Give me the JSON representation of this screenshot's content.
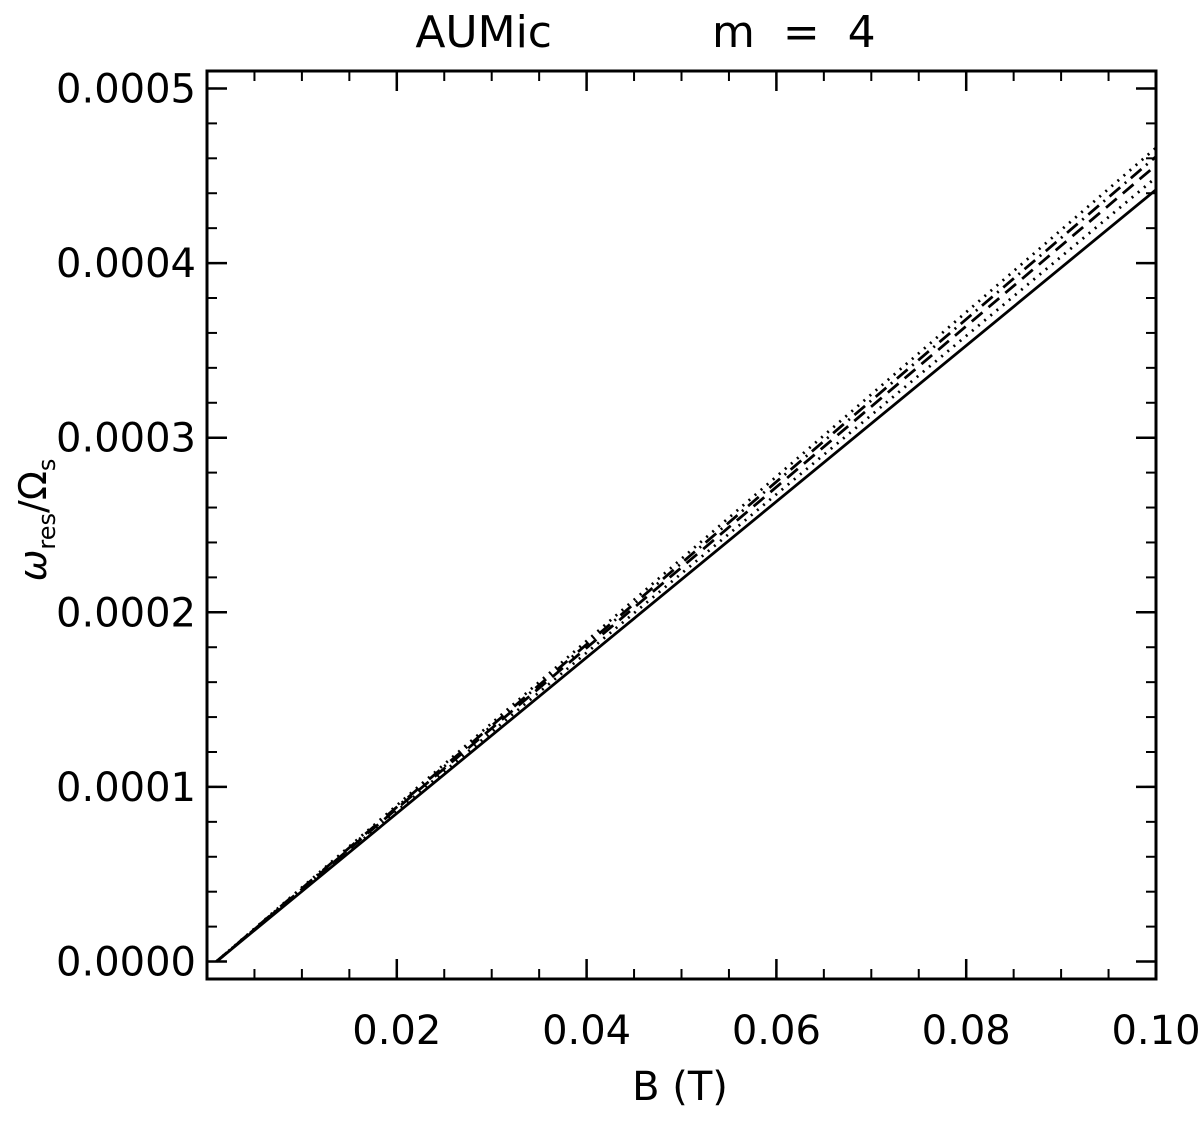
{
  "chart_data": {
    "type": "line",
    "title_left": "AUMic",
    "title_right": "m  =  4",
    "xlabel": "B (T)",
    "ylabel": {
      "omega": "ω",
      "res": "res",
      "slash": "/",
      "Omega": "Ω",
      "s": "s"
    },
    "xlim": [
      0.0,
      0.1
    ],
    "ylim": [
      -1e-05,
      0.00051
    ],
    "x_ticks": [
      0.02,
      0.04,
      0.06,
      0.08,
      0.1
    ],
    "x_tick_labels": [
      "0.02",
      "0.04",
      "0.06",
      "0.08",
      "0.10"
    ],
    "y_ticks": [
      0.0,
      0.0001,
      0.0002,
      0.0003,
      0.0004,
      0.0005
    ],
    "y_tick_labels": [
      "0.0000",
      "0.0001",
      "0.0002",
      "0.0003",
      "0.0004",
      "0.0005"
    ],
    "x_minor_step": 0.005,
    "y_minor_step": 2e-05,
    "grid": false,
    "series": [
      {
        "style": "solid",
        "x": [
          0.001,
          0.1
        ],
        "y": [
          0.0,
          0.000442
        ]
      },
      {
        "style": "dotted",
        "x": [
          0.001,
          0.1
        ],
        "y": [
          0.0,
          0.000449
        ]
      },
      {
        "style": "dashed",
        "x": [
          0.001,
          0.1
        ],
        "y": [
          0.0,
          0.000456
        ]
      },
      {
        "style": "dashdot",
        "x": [
          0.001,
          0.1
        ],
        "y": [
          0.0,
          0.000461
        ]
      },
      {
        "style": "dotted",
        "x": [
          0.001,
          0.1
        ],
        "y": [
          0.0,
          0.000466
        ]
      }
    ]
  }
}
